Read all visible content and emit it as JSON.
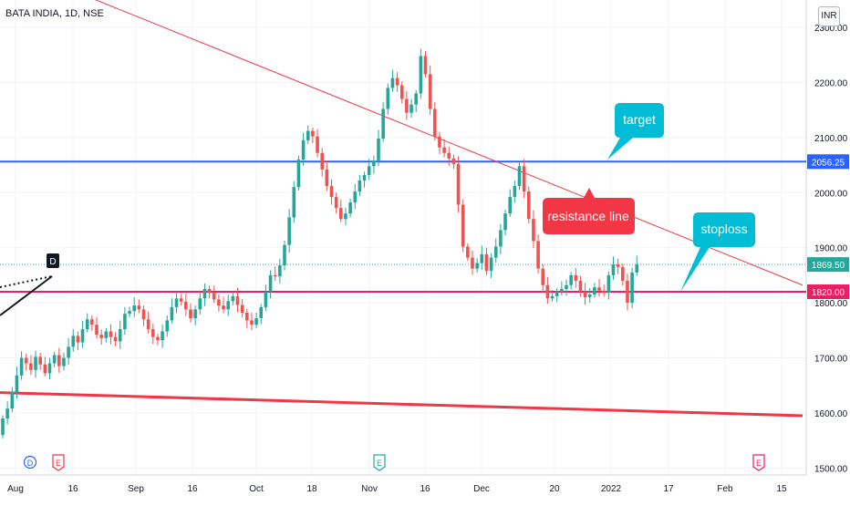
{
  "header": {
    "title": "BATA INDIA, 1D, NSE",
    "currency": "INR"
  },
  "colors": {
    "up": "#26a69a",
    "down": "#ef5350",
    "resistance": "#f23645",
    "target_line": "#2962ff",
    "stop_line": "#e91e63",
    "callout": "#00bcd4",
    "callout_red": "#f23645",
    "support": "#f23645"
  },
  "chart_data": {
    "type": "candlestick",
    "ylim": [
      1480,
      2315
    ],
    "yticks": [
      "2300.00",
      "2200.00",
      "2100.00",
      "2000.00",
      "1900.00",
      "1800.00",
      "1700.00",
      "1600.00",
      "1500.00"
    ],
    "xticks": [
      "Aug",
      "16",
      "Sep",
      "16",
      "Oct",
      "18",
      "Nov",
      "16",
      "Dec",
      "20",
      "2022",
      "17",
      "Feb",
      "15"
    ],
    "price_labels": [
      {
        "text": "2056.25",
        "kind": "target"
      },
      {
        "text": "1869.50",
        "kind": "last"
      },
      {
        "text": "1820.00",
        "kind": "stop"
      }
    ],
    "annotations": [
      {
        "text": "target",
        "kind": "callout"
      },
      {
        "text": "resistance line",
        "kind": "callout_red"
      },
      {
        "text": "stoploss",
        "kind": "callout"
      }
    ],
    "event_markers": [
      "D",
      "E",
      "E",
      "E"
    ],
    "d_badge": "D",
    "horizontal_levels": {
      "target": 2056.25,
      "stop": 1820.0,
      "last": 1869.5
    },
    "trendlines": {
      "resistance": [
        [
          0,
          2420
        ],
        [
          880,
          1832
        ]
      ],
      "support": [
        [
          0,
          1637
        ],
        [
          880,
          1595
        ]
      ]
    },
    "closes": [
      1590,
      1608,
      1638,
      1668,
      1700,
      1690,
      1678,
      1702,
      1688,
      1672,
      1690,
      1705,
      1685,
      1700,
      1720,
      1740,
      1728,
      1752,
      1770,
      1760,
      1742,
      1736,
      1748,
      1738,
      1730,
      1752,
      1780,
      1785,
      1795,
      1788,
      1770,
      1752,
      1738,
      1732,
      1748,
      1768,
      1792,
      1808,
      1802,
      1788,
      1772,
      1788,
      1808,
      1825,
      1818,
      1806,
      1795,
      1788,
      1803,
      1812,
      1796,
      1782,
      1768,
      1760,
      1772,
      1792,
      1820,
      1850,
      1848,
      1868,
      1905,
      1955,
      2010,
      2060,
      2095,
      2112,
      2102,
      2072,
      2042,
      2012,
      1992,
      1972,
      1952,
      1962,
      1982,
      2002,
      2022,
      2032,
      2048,
      2058,
      2098,
      2152,
      2190,
      2208,
      2195,
      2170,
      2145,
      2160,
      2180,
      2248,
      2215,
      2152,
      2102,
      2082,
      2072,
      2062,
      2052,
      1978,
      1902,
      1882,
      1862,
      1872,
      1888,
      1858,
      1882,
      1902,
      1932,
      1962,
      1992,
      2012,
      2048,
      2002,
      1952,
      1912,
      1862,
      1832,
      1808,
      1812,
      1820,
      1825,
      1832,
      1850,
      1840,
      1820,
      1810,
      1815,
      1828,
      1822,
      1818,
      1850,
      1870,
      1865,
      1840,
      1800,
      1855,
      1869.5
    ]
  }
}
